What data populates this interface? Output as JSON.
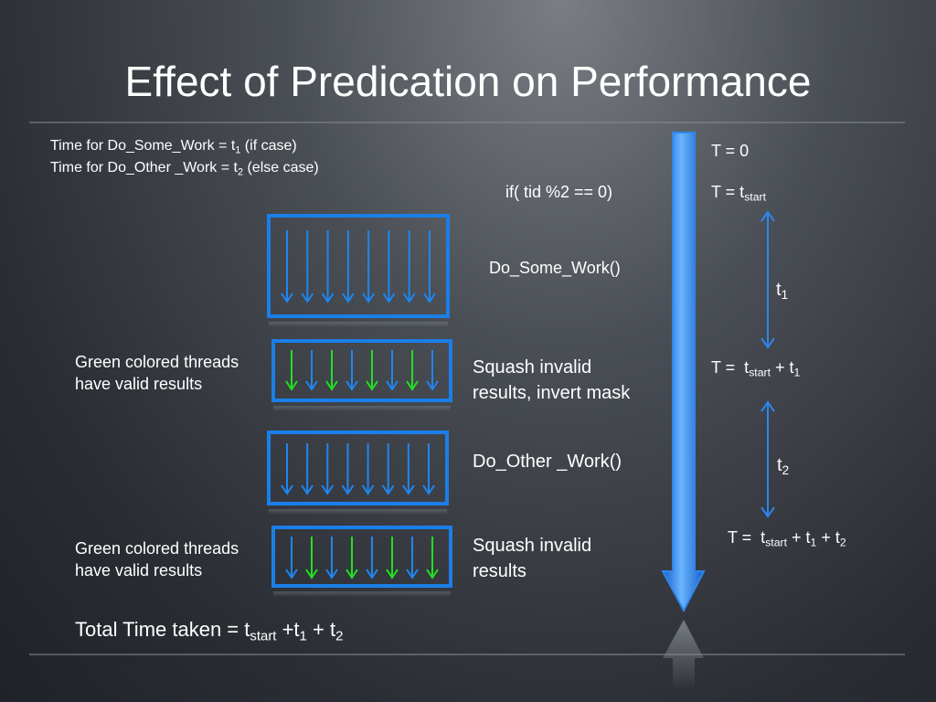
{
  "title": "Effect of Predication on Performance",
  "time_notes": [
    [
      "Time for Do_Some_Work = t",
      "1",
      " (if case)"
    ],
    [
      "Time for Do_Other _Work = t",
      "2",
      " (else case)"
    ]
  ],
  "code": "if( tid %2 == 0)",
  "steps": {
    "do_some_work": "Do_Some_Work()",
    "squash_1": [
      "Squash invalid",
      "results, invert mask"
    ],
    "do_other_work": "Do_Other _Work()",
    "squash_2": [
      "Squash invalid",
      "results"
    ]
  },
  "green_notes": [
    [
      "Green colored threads",
      "have valid results"
    ],
    [
      "Green colored threads",
      "have valid results"
    ]
  ],
  "timeline": {
    "t0": "T = 0",
    "t_start": [
      "T = t",
      "start"
    ],
    "t1_label": [
      "t",
      "1"
    ],
    "t_after_1": [
      "T =  t",
      "start",
      " + t",
      "1"
    ],
    "t2_label": [
      "t",
      "2"
    ],
    "t_after_2": [
      "T =  t",
      "start",
      " + t",
      "1",
      " + t",
      "2"
    ]
  },
  "total": [
    "Total Time taken = t",
    "start",
    " +t",
    "1",
    " + t",
    "2"
  ]
}
